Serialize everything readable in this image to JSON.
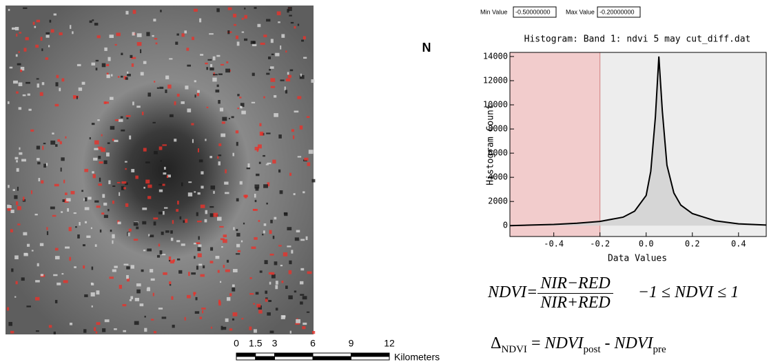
{
  "chart_data": {
    "type": "histogram-curve",
    "title": "Histogram: Band 1: ndvi 5 may cut_diff.dat",
    "xlabel": "Data Values",
    "ylabel": "Histogram Count",
    "x": [
      -0.59,
      -0.5,
      -0.4,
      -0.3,
      -0.2,
      -0.1,
      -0.05,
      0.0,
      0.02,
      0.04,
      0.055,
      0.07,
      0.09,
      0.12,
      0.15,
      0.2,
      0.3,
      0.4,
      0.52
    ],
    "values": [
      0,
      50,
      100,
      200,
      350,
      700,
      1200,
      2500,
      4500,
      9000,
      14000,
      9500,
      5000,
      2700,
      1700,
      1000,
      400,
      150,
      50
    ],
    "color": "#000000",
    "fill": "#cfcfcf",
    "xlim": [
      -0.59,
      0.52
    ],
    "ylim": [
      -900,
      14340
    ],
    "xticks": [
      -0.4,
      -0.2,
      {
        "value": 0,
        "label": "0.0"
      },
      0.2,
      0.4
    ],
    "yticks": [
      0,
      2000,
      4000,
      6000,
      8000,
      10000,
      12000,
      14000
    ],
    "highlight_xlim": [
      -0.59,
      -0.2
    ],
    "highlight_color": "#f2cccc",
    "min_label": "Min Value",
    "min_value": "-0.50000000",
    "max_label": "Max Value",
    "max_value": "-0.20000000"
  },
  "image": {
    "north_label": "N"
  },
  "scale_bar": {
    "ticks": [
      0,
      1.5,
      3,
      6,
      9,
      12
    ],
    "unit": "Kilometers"
  },
  "formulas": {
    "ndvi_lhs": "NDVI=",
    "numerator": "NIR−RED",
    "denominator": "NIR+RED",
    "range": "−1 ≤ NDVI ≤ 1",
    "delta": "Δ",
    "delta_sub": "NDVI",
    "equals": " = ",
    "post": "NDVI",
    "post_sub": "post",
    "minus": " - ",
    "pre": "NDVI",
    "pre_sub": "pre"
  }
}
